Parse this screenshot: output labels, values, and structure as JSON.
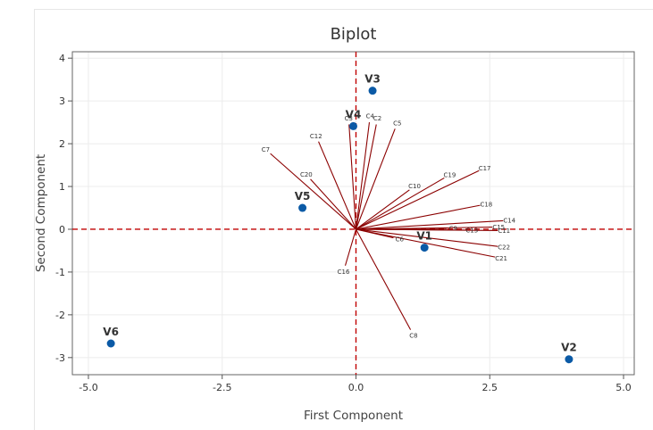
{
  "chart_data": {
    "type": "scatter",
    "title": "Biplot",
    "xlabel": "First Component",
    "ylabel": "Second Component",
    "xlim": [
      -5.3,
      5.2
    ],
    "ylim": [
      -3.4,
      4.15
    ],
    "x_ticks": [
      -5.0,
      -2.5,
      0.0,
      2.5,
      5.0
    ],
    "x_tick_labels": [
      "-5.0",
      "-2.5",
      "0.0",
      "2.5",
      "5.0"
    ],
    "y_ticks": [
      -3,
      -2,
      -1,
      0,
      1,
      2,
      3,
      4
    ],
    "y_tick_labels": [
      "-3",
      "-2",
      "-1",
      "0",
      "1",
      "2",
      "3",
      "4"
    ],
    "grid": true,
    "reference_lines": {
      "x": 0,
      "y": 0,
      "color": "#c00000",
      "style": "dashed"
    },
    "colors": {
      "points": "#0b5aa6",
      "vectors": "#8b0000",
      "reference": "#c00000",
      "grid": "#ececec"
    },
    "observations": [
      {
        "label": "V1",
        "x": 1.28,
        "y": -0.43
      },
      {
        "label": "V2",
        "x": 3.98,
        "y": -3.04
      },
      {
        "label": "V3",
        "x": 0.31,
        "y": 3.24
      },
      {
        "label": "V4",
        "x": -0.05,
        "y": 2.41
      },
      {
        "label": "V5",
        "x": -1.0,
        "y": 0.5
      },
      {
        "label": "V6",
        "x": -4.58,
        "y": -2.67
      }
    ],
    "loadings": [
      {
        "label": "C3",
        "x": -0.13,
        "y": 2.45
      },
      {
        "label": "C4",
        "x": 0.25,
        "y": 2.5
      },
      {
        "label": "C2",
        "x": 0.38,
        "y": 2.45
      },
      {
        "label": "C5",
        "x": 0.73,
        "y": 2.35
      },
      {
        "label": "C12",
        "x": -0.7,
        "y": 2.05
      },
      {
        "label": "C7",
        "x": -1.6,
        "y": 1.77
      },
      {
        "label": "C20",
        "x": -0.85,
        "y": 1.17
      },
      {
        "label": "C19",
        "x": 1.65,
        "y": 1.2
      },
      {
        "label": "C17",
        "x": 2.3,
        "y": 1.37
      },
      {
        "label": "C10",
        "x": 1.0,
        "y": 0.92
      },
      {
        "label": "C18",
        "x": 2.32,
        "y": 0.56
      },
      {
        "label": "C14",
        "x": 2.75,
        "y": 0.2
      },
      {
        "label": "C15",
        "x": 2.55,
        "y": 0.05
      },
      {
        "label": "C11",
        "x": 2.65,
        "y": -0.03
      },
      {
        "label": "C9",
        "x": 1.7,
        "y": 0.02
      },
      {
        "label": "C13",
        "x": 2.05,
        "y": -0.02
      },
      {
        "label": "C22",
        "x": 2.65,
        "y": -0.4
      },
      {
        "label": "C21",
        "x": 2.6,
        "y": -0.65
      },
      {
        "label": "C6",
        "x": 0.7,
        "y": -0.2
      },
      {
        "label": "C16",
        "x": -0.2,
        "y": -0.85
      },
      {
        "label": "C8",
        "x": 1.02,
        "y": -2.35
      }
    ]
  }
}
